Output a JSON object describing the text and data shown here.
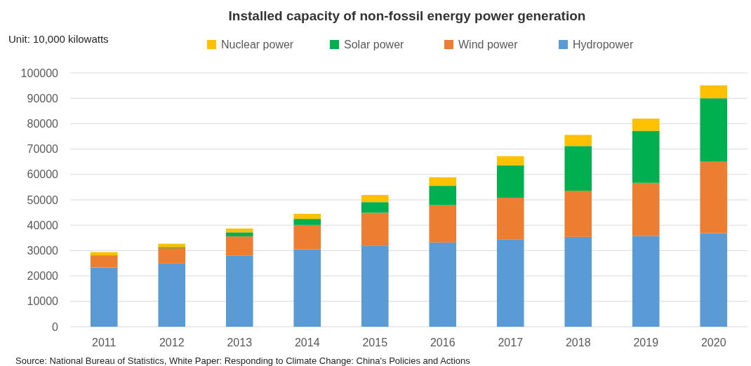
{
  "chart_data": {
    "type": "bar",
    "title": "Installed capacity of non-fossil energy power generation",
    "ylabel": "Unit: 10,000 kilowatts",
    "categories": [
      "2011",
      "2012",
      "2013",
      "2014",
      "2015",
      "2016",
      "2017",
      "2018",
      "2019",
      "2020"
    ],
    "stacked": true,
    "series": [
      {
        "name": "Hydropower",
        "color": "#5b9bd5",
        "values": [
          23300,
          24900,
          28100,
          30500,
          31800,
          33200,
          34300,
          35400,
          35700,
          36900
        ]
      },
      {
        "name": "Wind power",
        "color": "#ed7d31",
        "values": [
          4600,
          6100,
          7500,
          9600,
          13100,
          14700,
          16500,
          18200,
          21000,
          28100
        ]
      },
      {
        "name": "Solar power",
        "color": "#00b050",
        "values": [
          200,
          400,
          1600,
          2400,
          4200,
          7600,
          12800,
          17600,
          20500,
          25000
        ]
      },
      {
        "name": "Nuclear power",
        "color": "#ffc000",
        "values": [
          1300,
          1300,
          1500,
          2000,
          2800,
          3400,
          3600,
          4400,
          4800,
          5100
        ]
      }
    ],
    "ylim": [
      0,
      100000
    ],
    "yticks": [
      0,
      10000,
      20000,
      30000,
      40000,
      50000,
      60000,
      70000,
      80000,
      90000,
      100000
    ],
    "grid": "y",
    "legend": "top",
    "annotations": [
      "Source: National Bureau of Statistics, White Paper: Responding to Climate Change: China's Policies and Actions"
    ]
  }
}
